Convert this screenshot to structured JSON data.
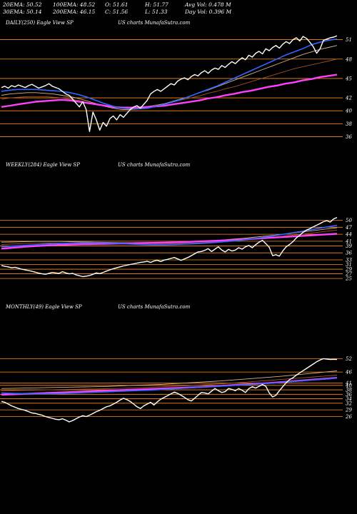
{
  "stats": {
    "row1": [
      "20EMA: 50.52",
      "100EMA: 48.52",
      "O: 51.61",
      "H: 51.77",
      "Avg Vol: 0.478 M"
    ],
    "row2": [
      "30EMA: 50.14",
      "200EMA: 46.15",
      "C: 51.56",
      "L: 51.33",
      "Day Vol: 0.396 M"
    ]
  },
  "colors": {
    "background": "#000000",
    "price": "#ffffff",
    "grid": "#ff8c1a",
    "ema_blue": "#3366ff",
    "ema_magenta": "#ff40ff",
    "ema_tan": "#d9b38c",
    "ema_brown": "#a0522d"
  },
  "chart_data": [
    {
      "type": "line",
      "panel": "daily",
      "title": "DAILY(250) Eagle  View  SP",
      "watermark": "US charts MunafaSutra.com",
      "y_ticks": [
        51,
        48,
        45,
        42,
        40,
        38,
        36
      ],
      "ylim": [
        34.5,
        52.5
      ],
      "x_count": 100,
      "series": [
        {
          "key": "price",
          "values": [
            43.6,
            43.8,
            43.5,
            43.9,
            43.7,
            44.0,
            43.8,
            43.6,
            43.9,
            44.1,
            43.8,
            43.5,
            43.7,
            43.9,
            44.2,
            43.8,
            43.6,
            43.4,
            43.0,
            42.6,
            42.4,
            41.8,
            41.2,
            40.6,
            41.4,
            40.2,
            36.8,
            39.8,
            38.6,
            37.0,
            38.2,
            37.6,
            38.8,
            39.2,
            38.6,
            39.4,
            39.0,
            39.6,
            40.2,
            40.6,
            40.8,
            40.4,
            41.0,
            41.6,
            42.6,
            43.0,
            43.3,
            43.0,
            43.4,
            43.8,
            44.2,
            44.0,
            44.6,
            44.9,
            45.1,
            44.8,
            45.3,
            45.6,
            45.4,
            45.9,
            46.2,
            45.8,
            46.3,
            46.6,
            46.4,
            47.0,
            46.7,
            47.2,
            47.6,
            47.3,
            47.8,
            48.2,
            47.9,
            48.6,
            48.3,
            48.9,
            49.2,
            48.8,
            49.6,
            49.3,
            49.8,
            50.1,
            49.7,
            50.3,
            50.7,
            50.4,
            51.0,
            51.3,
            50.8,
            51.5,
            51.2,
            50.6,
            49.9,
            48.9,
            49.6,
            50.9,
            51.1,
            51.3,
            51.4,
            51.6
          ]
        },
        {
          "key": "ema_blue",
          "values": [
            43.0,
            43.2,
            43.3,
            43.3,
            43.3,
            43.2,
            43.1,
            43.0,
            42.8,
            42.5,
            42.1,
            41.6,
            41.1,
            40.7,
            40.4,
            40.3,
            40.3,
            40.4,
            40.7,
            41.0,
            41.4,
            41.8,
            42.3,
            42.8,
            43.3,
            43.8,
            44.4,
            45.0,
            45.6,
            46.2,
            46.8,
            47.4,
            48.0,
            48.6,
            49.1,
            49.6,
            50.2,
            50.6,
            50.9,
            51.1
          ]
        },
        {
          "key": "ema_tan",
          "values": [
            42.4,
            42.6,
            42.7,
            42.8,
            42.8,
            42.7,
            42.6,
            42.4,
            42.2,
            41.9,
            41.5,
            41.1,
            40.7,
            40.4,
            40.2,
            40.2,
            40.3,
            40.5,
            40.8,
            41.1,
            41.5,
            41.9,
            42.3,
            42.8,
            43.2,
            43.7,
            44.2,
            44.7,
            45.2,
            45.7,
            46.2,
            46.7,
            47.2,
            47.7,
            48.2,
            48.7,
            49.1,
            49.5,
            49.8,
            50.1
          ]
        },
        {
          "key": "ema_brown",
          "values": [
            41.8,
            42.0,
            42.1,
            42.2,
            42.2,
            42.2,
            42.1,
            42.0,
            41.8,
            41.6,
            41.3,
            41.0,
            40.8,
            40.6,
            40.5,
            40.5,
            40.6,
            40.7,
            40.9,
            41.1,
            41.4,
            41.7,
            42.0,
            42.3,
            42.7,
            43.0,
            43.4,
            43.7,
            44.1,
            44.5,
            44.9,
            45.3,
            45.7,
            46.1,
            46.5,
            46.8,
            47.1,
            47.4,
            47.7,
            48.0
          ]
        },
        {
          "key": "ema_magenta",
          "values": [
            40.6,
            40.8,
            41.0,
            41.2,
            41.4,
            41.5,
            41.6,
            41.7,
            41.6,
            41.4,
            41.2,
            41.0,
            40.8,
            40.6,
            40.5,
            40.5,
            40.5,
            40.6,
            40.7,
            40.8,
            41.0,
            41.2,
            41.4,
            41.6,
            41.9,
            42.1,
            42.4,
            42.6,
            42.9,
            43.1,
            43.4,
            43.7,
            43.9,
            44.2,
            44.4,
            44.7,
            44.9,
            45.2,
            45.4,
            45.6
          ]
        }
      ]
    },
    {
      "type": "line",
      "panel": "weekly",
      "title": "WEEKLY(284) Eagle  View  SP",
      "watermark": "US charts MunafaSutra.com",
      "y_ticks": [
        50,
        47,
        44,
        41,
        39,
        36,
        33,
        31,
        29,
        27,
        25
      ],
      "ylim": [
        23.5,
        52
      ],
      "x_count": 100,
      "series": [
        {
          "key": "price",
          "values": [
            30.6,
            30.2,
            30.0,
            29.6,
            29.8,
            29.4,
            29.0,
            28.7,
            28.4,
            28.1,
            27.7,
            27.3,
            27.0,
            26.8,
            27.2,
            27.6,
            27.4,
            27.2,
            27.9,
            27.4,
            27.0,
            27.2,
            26.6,
            26.2,
            25.8,
            26.0,
            26.3,
            26.8,
            27.4,
            27.1,
            27.6,
            28.2,
            28.7,
            29.2,
            29.6,
            30.0,
            30.4,
            30.7,
            31.0,
            31.3,
            31.6,
            31.9,
            32.1,
            32.4,
            31.9,
            32.5,
            32.8,
            32.3,
            32.9,
            33.2,
            33.6,
            34.0,
            33.4,
            32.8,
            33.4,
            34.0,
            34.8,
            35.6,
            36.4,
            36.6,
            37.1,
            37.8,
            36.6,
            37.6,
            38.6,
            37.2,
            36.4,
            37.5,
            36.8,
            37.2,
            38.2,
            37.6,
            38.6,
            39.2,
            38.2,
            39.5,
            40.6,
            41.4,
            40.0,
            38.4,
            34.8,
            35.2,
            34.6,
            36.8,
            38.6,
            39.6,
            40.8,
            42.4,
            43.6,
            44.8,
            45.8,
            46.4,
            47.2,
            47.9,
            48.6,
            49.4,
            49.8,
            49.2,
            50.6,
            51.2
          ]
        },
        {
          "key": "ema_blue",
          "values": [
            38.6,
            38.9,
            39.2,
            39.5,
            39.8,
            40.0,
            40.2,
            40.3,
            40.4,
            40.3,
            40.1,
            39.8,
            39.6,
            39.5,
            39.5,
            39.6,
            39.8,
            40.0,
            40.3,
            40.7,
            41.1,
            41.6,
            42.2,
            42.9,
            43.7,
            44.5,
            45.3,
            46.2,
            47.0,
            47.8
          ]
        },
        {
          "key": "ema_tan",
          "values": [
            40.6,
            40.7,
            40.8,
            40.9,
            40.9,
            40.9,
            40.8,
            40.7,
            40.6,
            40.5,
            40.4,
            40.3,
            40.3,
            40.3,
            40.4,
            40.5,
            40.7,
            40.9,
            41.2,
            41.5,
            41.9,
            42.3,
            42.8,
            43.3,
            43.8,
            44.4,
            45.0,
            45.6,
            46.2,
            46.8
          ]
        },
        {
          "key": "ema_brown",
          "values": [
            39.6,
            39.8,
            40.0,
            40.1,
            40.2,
            40.2,
            40.2,
            40.1,
            40.0,
            39.9,
            39.8,
            39.7,
            39.7,
            39.7,
            39.8,
            39.9,
            40.1,
            40.3,
            40.6,
            40.9,
            41.2,
            41.6,
            42.0,
            42.5,
            43.0,
            43.5,
            44.0,
            44.6,
            45.2,
            45.8
          ]
        },
        {
          "key": "ema_magenta",
          "values": [
            37.8,
            38.2,
            38.6,
            38.9,
            39.2,
            39.4,
            39.6,
            39.7,
            39.8,
            39.9,
            40.0,
            40.1,
            40.2,
            40.3,
            40.4,
            40.5,
            40.7,
            40.9,
            41.1,
            41.3,
            41.5,
            41.8,
            42.1,
            42.4,
            42.7,
            43.0,
            43.3,
            43.6,
            43.9,
            44.2
          ]
        }
      ]
    },
    {
      "type": "line",
      "panel": "monthly",
      "title": "MONTHLY(49) Eagle  View  SP",
      "watermark": "US charts MunafaSutra.com",
      "y_ticks": [
        52,
        46,
        41,
        40,
        38,
        36,
        34,
        32,
        29,
        26
      ],
      "ylim": [
        22,
        55
      ],
      "x_count": 100,
      "series": [
        {
          "key": "price",
          "values": [
            32.8,
            32.4,
            31.6,
            30.8,
            30.2,
            29.6,
            29.2,
            28.8,
            28.2,
            27.6,
            27.4,
            27.0,
            26.6,
            26.0,
            25.6,
            25.2,
            24.8,
            24.6,
            25.0,
            24.4,
            23.6,
            24.2,
            25.0,
            25.8,
            26.4,
            26.0,
            26.6,
            27.4,
            28.2,
            28.8,
            29.6,
            30.4,
            30.8,
            31.6,
            32.4,
            33.4,
            34.2,
            33.6,
            32.8,
            31.6,
            30.4,
            29.6,
            30.8,
            31.6,
            32.4,
            31.2,
            32.6,
            33.8,
            34.6,
            35.4,
            36.2,
            37.0,
            36.4,
            35.6,
            34.6,
            33.6,
            33.0,
            34.2,
            35.6,
            36.8,
            36.6,
            36.2,
            37.4,
            38.6,
            37.6,
            36.8,
            37.2,
            38.6,
            38.2,
            37.6,
            38.6,
            37.8,
            36.8,
            38.6,
            39.4,
            38.8,
            39.6,
            40.4,
            39.6,
            36.6,
            34.8,
            35.6,
            37.6,
            39.4,
            41.2,
            42.6,
            43.4,
            44.6,
            45.6,
            46.6,
            47.6,
            48.6,
            49.6,
            50.6,
            51.4,
            52.0,
            51.8,
            51.6,
            51.7,
            51.6
          ]
        },
        {
          "key": "ema_blue",
          "values": [
            36.6,
            36.4,
            36.3,
            36.2,
            36.2,
            36.3,
            36.5,
            36.7,
            36.9,
            37.1,
            37.3,
            37.5,
            37.7,
            37.9,
            38.2,
            38.5,
            38.8,
            39.1,
            39.4,
            39.7,
            40.0,
            40.3,
            40.6,
            40.9,
            41.3,
            41.7,
            42.1,
            42.5,
            42.9,
            43.3
          ]
        },
        {
          "key": "ema_tan",
          "values": [
            38.6,
            38.7,
            38.8,
            38.9,
            39.0,
            39.1,
            39.2,
            39.3,
            39.4,
            39.5,
            39.7,
            39.9,
            40.1,
            40.3,
            40.5,
            40.8,
            41.1,
            41.4,
            41.7,
            42.0,
            42.4,
            42.8,
            43.2,
            43.6,
            44.0,
            44.5,
            45.0,
            45.5,
            46.0,
            46.5
          ]
        },
        {
          "key": "ema_brown",
          "values": [
            37.6,
            37.7,
            37.8,
            37.9,
            38.0,
            38.1,
            38.2,
            38.3,
            38.4,
            38.5,
            38.6,
            38.8,
            39.0,
            39.2,
            39.4,
            39.6,
            39.8,
            40.1,
            40.4,
            40.7,
            41.0,
            41.4,
            41.8,
            42.2,
            42.6,
            43.0,
            43.4,
            43.8,
            44.2,
            44.6
          ]
        },
        {
          "key": "ema_magenta",
          "values": [
            35.8,
            36.0,
            36.2,
            36.4,
            36.6,
            36.8,
            37.0,
            37.2,
            37.4,
            37.6,
            37.8,
            38.0,
            38.2,
            38.4,
            38.6,
            38.8,
            39.0,
            39.2,
            39.5,
            39.8,
            40.1,
            40.4,
            40.7,
            41.0,
            41.4,
            41.8,
            42.2,
            42.6,
            43.0,
            43.4
          ]
        }
      ]
    }
  ]
}
